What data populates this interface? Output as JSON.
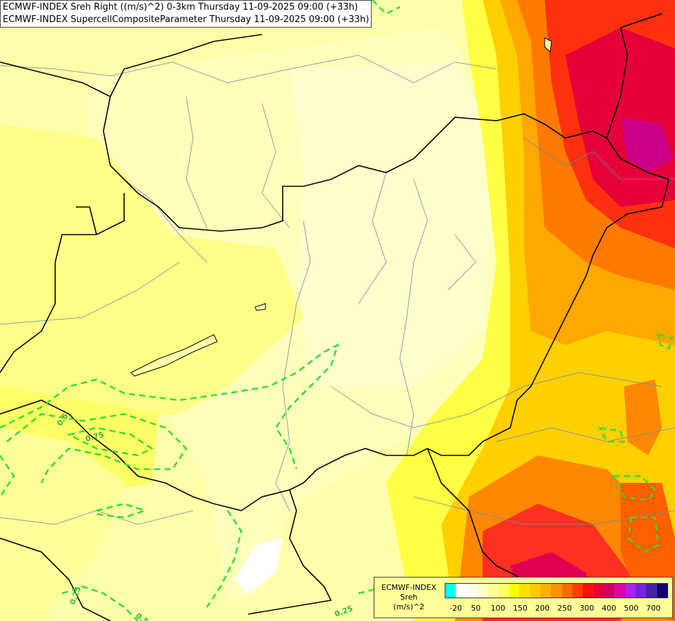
{
  "title": {
    "line1": "ECMWF-INDEX Sreh Right ((m/s)^2) 0-3km Thursday 11-09-2025 09:00 (+33h)",
    "line2": "ECMWF-INDEX SupercellCompositeParameter Thursday 11-09-2025 09:00 (+33h)"
  },
  "legend": {
    "title1": "ECMWF-INDEX",
    "title2": "Sreh",
    "units": "(m/s)^2",
    "colors": [
      "#00ffff",
      "#ffffff",
      "#ffffee",
      "#ffffcc",
      "#ffff99",
      "#ffff66",
      "#ffff00",
      "#ffe000",
      "#ffc800",
      "#ffb000",
      "#ff9000",
      "#ff6a00",
      "#ff4000",
      "#ff1010",
      "#e6003a",
      "#cc0066",
      "#dd00aa",
      "#aa22ee",
      "#7722dd",
      "#4422aa",
      "#110077"
    ],
    "ticks": [
      "-20",
      "50",
      "100",
      "150",
      "200",
      "250",
      "300",
      "400",
      "500",
      "700"
    ]
  },
  "contours": {
    "color": "#33dd33",
    "labels": [
      "0.5",
      "0.75",
      "0.25",
      "0.5",
      "0.25"
    ]
  }
}
